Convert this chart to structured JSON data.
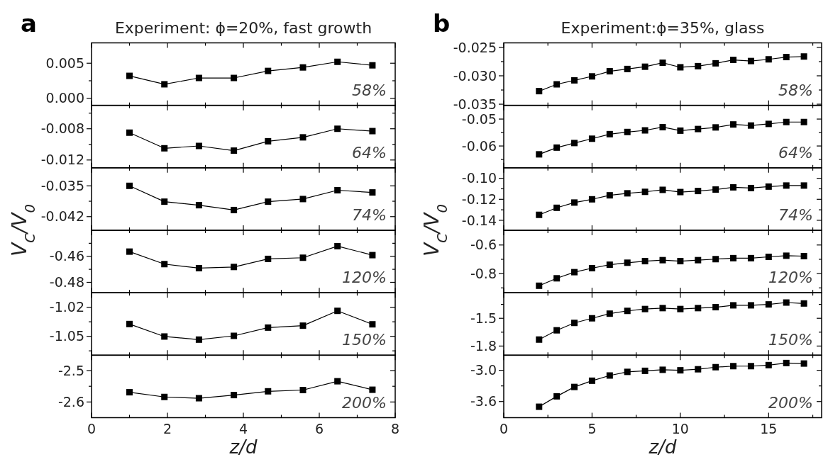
{
  "chart_data": [
    {
      "type": "line",
      "title": "Experiment: ϕ=20%, fast growth",
      "marker": "square",
      "line_style": "solid",
      "tick_labels": "y",
      "x": [
        1.0,
        1.92,
        2.83,
        3.75,
        4.65,
        5.57,
        6.48,
        7.4
      ],
      "series": [
        {
          "color": "#000000",
          "values": [
            0.0032,
            0.002,
            0.0029,
            0.0029,
            0.0039,
            0.0044,
            0.0052,
            0.0047
          ]
        }
      ],
      "xlim": [
        0,
        8
      ],
      "xticks": [
        0,
        {
          "value": 1,
          "label": null
        },
        2,
        {
          "value": 3,
          "label": null
        },
        4,
        {
          "value": 5,
          "label": null
        },
        6,
        {
          "value": 7,
          "label": null
        },
        8
      ],
      "ylim": [
        -0.001,
        0.0079
      ],
      "yticks": [
        {
          "value": 0,
          "label": "0.000"
        },
        {
          "value": 0.0025,
          "label": null
        },
        {
          "value": 0.005,
          "label": "0.005"
        }
      ],
      "annotations": [
        "a",
        "58%"
      ]
    },
    {
      "type": "line",
      "marker": "square",
      "line_style": "solid",
      "tick_labels": "y",
      "x": [
        1.0,
        1.92,
        2.83,
        3.75,
        4.65,
        5.57,
        6.48,
        7.4
      ],
      "series": [
        {
          "color": "#000000",
          "values": [
            -0.0085,
            -0.0105,
            -0.0102,
            -0.0108,
            -0.0096,
            -0.0091,
            -0.008,
            -0.0083
          ]
        }
      ],
      "xlim": [
        0,
        8
      ],
      "xticks": [
        0,
        {
          "value": 1,
          "label": null
        },
        2,
        {
          "value": 3,
          "label": null
        },
        4,
        {
          "value": 5,
          "label": null
        },
        6,
        {
          "value": 7,
          "label": null
        },
        8
      ],
      "ylim": [
        -0.013,
        -0.005
      ],
      "yticks": [
        {
          "value": -0.012,
          "label": "-0.012"
        },
        {
          "value": -0.01,
          "label": null
        },
        {
          "value": -0.008,
          "label": "-0.008"
        },
        {
          "value": -0.006,
          "label": null
        }
      ],
      "annotations": [
        "64%"
      ]
    },
    {
      "type": "line",
      "ylabel": "V$_{C}$/V$_{0}$",
      "marker": "square",
      "line_style": "solid",
      "tick_labels": "y",
      "x": [
        1.0,
        1.92,
        2.83,
        3.75,
        4.65,
        5.57,
        6.48,
        7.4
      ],
      "series": [
        {
          "color": "#000000",
          "values": [
            -0.035,
            -0.0386,
            -0.0394,
            -0.0405,
            -0.0386,
            -0.038,
            -0.036,
            -0.0365
          ]
        }
      ],
      "xlim": [
        0,
        8
      ],
      "xticks": [
        0,
        {
          "value": 1,
          "label": null
        },
        2,
        {
          "value": 3,
          "label": null
        },
        4,
        {
          "value": 5,
          "label": null
        },
        6,
        {
          "value": 7,
          "label": null
        },
        8
      ],
      "ylim": [
        -0.0451,
        -0.0309
      ],
      "yticks": [
        {
          "value": -0.042,
          "label": "-0.042"
        },
        {
          "value": -0.0385,
          "label": null
        },
        {
          "value": -0.035,
          "label": "-0.035"
        }
      ],
      "annotations": [
        "74%"
      ]
    },
    {
      "type": "line",
      "marker": "square",
      "line_style": "solid",
      "tick_labels": "y",
      "x": [
        1.0,
        1.92,
        2.83,
        3.75,
        4.65,
        5.57,
        6.48,
        7.4
      ],
      "series": [
        {
          "color": "#000000",
          "values": [
            -0.4564,
            -0.466,
            -0.4691,
            -0.4682,
            -0.462,
            -0.4611,
            -0.4522,
            -0.4591
          ]
        }
      ],
      "xlim": [
        0,
        8
      ],
      "xticks": [
        0,
        {
          "value": 1,
          "label": null
        },
        2,
        {
          "value": 3,
          "label": null
        },
        4,
        {
          "value": 5,
          "label": null
        },
        6,
        {
          "value": 7,
          "label": null
        },
        8
      ],
      "ylim": [
        -0.488,
        -0.44
      ],
      "yticks": [
        {
          "value": -0.48,
          "label": "-0.48"
        },
        {
          "value": -0.47,
          "label": null
        },
        {
          "value": -0.46,
          "label": "-0.46"
        },
        {
          "value": -0.45,
          "label": null
        }
      ],
      "annotations": [
        "120%"
      ]
    },
    {
      "type": "line",
      "marker": "square",
      "line_style": "solid",
      "tick_labels": "y",
      "x": [
        1.0,
        1.92,
        2.83,
        3.75,
        4.65,
        5.57,
        6.48,
        7.4
      ],
      "series": [
        {
          "color": "#000000",
          "values": [
            -1.0373,
            -1.0502,
            -1.0534,
            -1.0495,
            -1.041,
            -1.039,
            -1.0237,
            -1.0376
          ]
        }
      ],
      "xlim": [
        0,
        8
      ],
      "xticks": [
        0,
        {
          "value": 1,
          "label": null
        },
        2,
        {
          "value": 3,
          "label": null
        },
        4,
        {
          "value": 5,
          "label": null
        },
        6,
        {
          "value": 7,
          "label": null
        },
        8
      ],
      "ylim": [
        -1.0695,
        -1.005
      ],
      "yticks": [
        {
          "value": -1.065,
          "label": null
        },
        {
          "value": -1.05,
          "label": "-1.05"
        },
        {
          "value": -1.035,
          "label": null
        },
        {
          "value": -1.02,
          "label": "-1.02"
        }
      ],
      "annotations": [
        "150%"
      ]
    },
    {
      "type": "line",
      "xlabel": "z/d",
      "marker": "square",
      "line_style": "solid",
      "x": [
        1.0,
        1.92,
        2.83,
        3.75,
        4.65,
        5.57,
        6.48,
        7.4
      ],
      "series": [
        {
          "color": "#000000",
          "values": [
            -2.569,
            -2.584,
            -2.588,
            -2.578,
            -2.566,
            -2.562,
            -2.534,
            -2.561
          ]
        }
      ],
      "xlim": [
        0,
        8
      ],
      "xticks": [
        0,
        {
          "value": 1,
          "label": null
        },
        2,
        {
          "value": 3,
          "label": null
        },
        4,
        {
          "value": 5,
          "label": null
        },
        6,
        {
          "value": 7,
          "label": null
        },
        8
      ],
      "ylim": [
        -2.65,
        -2.451
      ],
      "yticks": [
        {
          "value": -2.6,
          "label": "-2.6"
        },
        {
          "value": -2.55,
          "label": null
        },
        {
          "value": -2.5,
          "label": "-2.5"
        }
      ],
      "annotations": [
        "200%"
      ]
    },
    {
      "type": "line",
      "title": "Experiment:ϕ=35%, glass",
      "marker": "square",
      "line_style": "solid",
      "tick_labels": "y",
      "x": [
        2,
        3,
        4,
        5,
        6,
        7,
        8,
        9,
        10,
        11,
        12,
        13,
        14,
        15,
        16,
        17
      ],
      "series": [
        {
          "color": "#000000",
          "values": [
            -0.0327,
            -0.0315,
            -0.0308,
            -0.0301,
            -0.0292,
            -0.0288,
            -0.0284,
            -0.0277,
            -0.0285,
            -0.0283,
            -0.0278,
            -0.0272,
            -0.0274,
            -0.0271,
            -0.0267,
            -0.0266
          ]
        }
      ],
      "xlim": [
        0,
        18
      ],
      "xticks": [
        0,
        {
          "value": 2.5,
          "label": null
        },
        5,
        {
          "value": 7.5,
          "label": null
        },
        10,
        {
          "value": 12.5,
          "label": null
        },
        15,
        {
          "value": 17.5,
          "label": null
        }
      ],
      "ylim": [
        -0.0352,
        -0.0242
      ],
      "yticks": [
        {
          "value": -0.035,
          "label": "-0.035"
        },
        {
          "value": -0.0325,
          "label": null
        },
        {
          "value": -0.03,
          "label": "-0.030"
        },
        {
          "value": -0.0275,
          "label": null
        },
        {
          "value": -0.025,
          "label": "-0.025"
        }
      ],
      "annotations": [
        "b",
        "58%"
      ]
    },
    {
      "type": "line",
      "marker": "square",
      "line_style": "solid",
      "tick_labels": "y",
      "x": [
        2,
        3,
        4,
        5,
        6,
        7,
        8,
        9,
        10,
        11,
        12,
        13,
        14,
        15,
        16,
        17
      ],
      "series": [
        {
          "color": "#000000",
          "values": [
            -0.0631,
            -0.0606,
            -0.0589,
            -0.0573,
            -0.0556,
            -0.0548,
            -0.0542,
            -0.053,
            -0.0543,
            -0.0537,
            -0.0531,
            -0.052,
            -0.0524,
            -0.0518,
            -0.0511,
            -0.0511
          ]
        }
      ],
      "xlim": [
        0,
        18
      ],
      "xticks": [
        0,
        {
          "value": 2.5,
          "label": null
        },
        5,
        {
          "value": 7.5,
          "label": null
        },
        10,
        {
          "value": 12.5,
          "label": null
        },
        15,
        {
          "value": 17.5,
          "label": null
        }
      ],
      "ylim": [
        -0.0681,
        -0.0449
      ],
      "yticks": [
        {
          "value": -0.065,
          "label": null
        },
        {
          "value": -0.06,
          "label": "-0.06"
        },
        {
          "value": -0.055,
          "label": null
        },
        {
          "value": -0.05,
          "label": "-0.05"
        }
      ],
      "annotations": [
        "64%"
      ]
    },
    {
      "type": "line",
      "ylabel": "V$_{C}$/V$_{0}$",
      "marker": "square",
      "line_style": "solid",
      "tick_labels": "y",
      "x": [
        2,
        3,
        4,
        5,
        6,
        7,
        8,
        9,
        10,
        11,
        12,
        13,
        14,
        15,
        16,
        17
      ],
      "series": [
        {
          "color": "#000000",
          "values": [
            -0.1348,
            -0.1281,
            -0.1231,
            -0.12,
            -0.1162,
            -0.1143,
            -0.1129,
            -0.111,
            -0.1131,
            -0.1121,
            -0.1107,
            -0.1086,
            -0.1093,
            -0.1079,
            -0.1069,
            -0.1069
          ]
        }
      ],
      "xlim": [
        0,
        18
      ],
      "xticks": [
        0,
        {
          "value": 2.5,
          "label": null
        },
        5,
        {
          "value": 7.5,
          "label": null
        },
        10,
        {
          "value": 12.5,
          "label": null
        },
        15,
        {
          "value": 17.5,
          "label": null
        }
      ],
      "ylim": [
        -0.1495,
        -0.09
      ],
      "yticks": [
        {
          "value": -0.14,
          "label": "-0.14"
        },
        {
          "value": -0.13,
          "label": null
        },
        {
          "value": -0.12,
          "label": "-0.12"
        },
        {
          "value": -0.11,
          "label": null
        },
        {
          "value": -0.1,
          "label": "-0.10"
        }
      ],
      "annotations": [
        "74%"
      ]
    },
    {
      "type": "line",
      "marker": "square",
      "line_style": "solid",
      "tick_labels": "y",
      "x": [
        2,
        3,
        4,
        5,
        6,
        7,
        8,
        9,
        10,
        11,
        12,
        13,
        14,
        15,
        16,
        17
      ],
      "series": [
        {
          "color": "#000000",
          "values": [
            -0.885,
            -0.833,
            -0.79,
            -0.762,
            -0.738,
            -0.724,
            -0.713,
            -0.706,
            -0.713,
            -0.706,
            -0.699,
            -0.692,
            -0.692,
            -0.683,
            -0.675,
            -0.678
          ]
        }
      ],
      "xlim": [
        0,
        18
      ],
      "xticks": [
        0,
        {
          "value": 2.5,
          "label": null
        },
        5,
        {
          "value": 7.5,
          "label": null
        },
        10,
        {
          "value": 12.5,
          "label": null
        },
        15,
        {
          "value": 17.5,
          "label": null
        }
      ],
      "ylim": [
        -0.934,
        -0.497
      ],
      "yticks": [
        {
          "value": -0.9,
          "label": null
        },
        -0.8,
        {
          "value": -0.7,
          "label": null
        },
        -0.6
      ],
      "annotations": [
        "120%"
      ]
    },
    {
      "type": "line",
      "marker": "square",
      "line_style": "solid",
      "tick_labels": "y",
      "x": [
        2,
        3,
        4,
        5,
        6,
        7,
        8,
        9,
        10,
        11,
        12,
        13,
        14,
        15,
        16,
        17
      ],
      "series": [
        {
          "color": "#000000",
          "values": [
            -1.73,
            -1.63,
            -1.55,
            -1.5,
            -1.45,
            -1.42,
            -1.4,
            -1.39,
            -1.4,
            -1.39,
            -1.38,
            -1.36,
            -1.36,
            -1.35,
            -1.33,
            -1.34
          ]
        }
      ],
      "xlim": [
        0,
        18
      ],
      "xticks": [
        0,
        {
          "value": 2.5,
          "label": null
        },
        5,
        {
          "value": 7.5,
          "label": null
        },
        10,
        {
          "value": 12.5,
          "label": null
        },
        15,
        {
          "value": 17.5,
          "label": null
        }
      ],
      "ylim": [
        -1.899,
        -1.224
      ],
      "yticks": [
        -1.8,
        {
          "value": -1.65,
          "label": null
        },
        -1.5,
        {
          "value": -1.35,
          "label": null
        }
      ],
      "annotations": [
        "150%"
      ]
    },
    {
      "type": "line",
      "xlabel": "z/d",
      "marker": "square",
      "line_style": "solid",
      "x": [
        2,
        3,
        4,
        5,
        6,
        7,
        8,
        9,
        10,
        11,
        12,
        13,
        14,
        15,
        16,
        17
      ],
      "series": [
        {
          "color": "#000000",
          "values": [
            -3.7,
            -3.5,
            -3.32,
            -3.2,
            -3.1,
            -3.03,
            -3.01,
            -2.99,
            -3.0,
            -2.98,
            -2.94,
            -2.92,
            -2.92,
            -2.9,
            -2.86,
            -2.87
          ]
        }
      ],
      "xlim": [
        0,
        18
      ],
      "xticks": [
        0,
        {
          "value": 2.5,
          "label": null
        },
        5,
        {
          "value": 7.5,
          "label": null
        },
        10,
        {
          "value": 12.5,
          "label": null
        },
        15,
        {
          "value": 17.5,
          "label": null
        }
      ],
      "ylim": [
        -3.91,
        -2.71
      ],
      "yticks": [
        {
          "value": -3.6,
          "label": "-3.6"
        },
        {
          "value": -3.3,
          "label": null
        },
        {
          "value": -3.0,
          "label": "-3.0"
        }
      ],
      "annotations": [
        "200%"
      ]
    }
  ]
}
